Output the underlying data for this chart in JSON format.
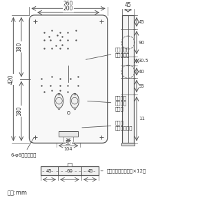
{
  "line_color": "#555555",
  "text_color": "#333333",
  "annotations": {
    "free_screw": "自由取外し\n防止ビス稴",
    "switch_box": "スイッチ\nボックス\n取付稴",
    "knockout": "通線用\nノックアウト",
    "base_hole": "6-φ6基台取付稴",
    "knockout_x12": "通線用ノックアウト×12ケ",
    "unit": "単位:mm"
  }
}
